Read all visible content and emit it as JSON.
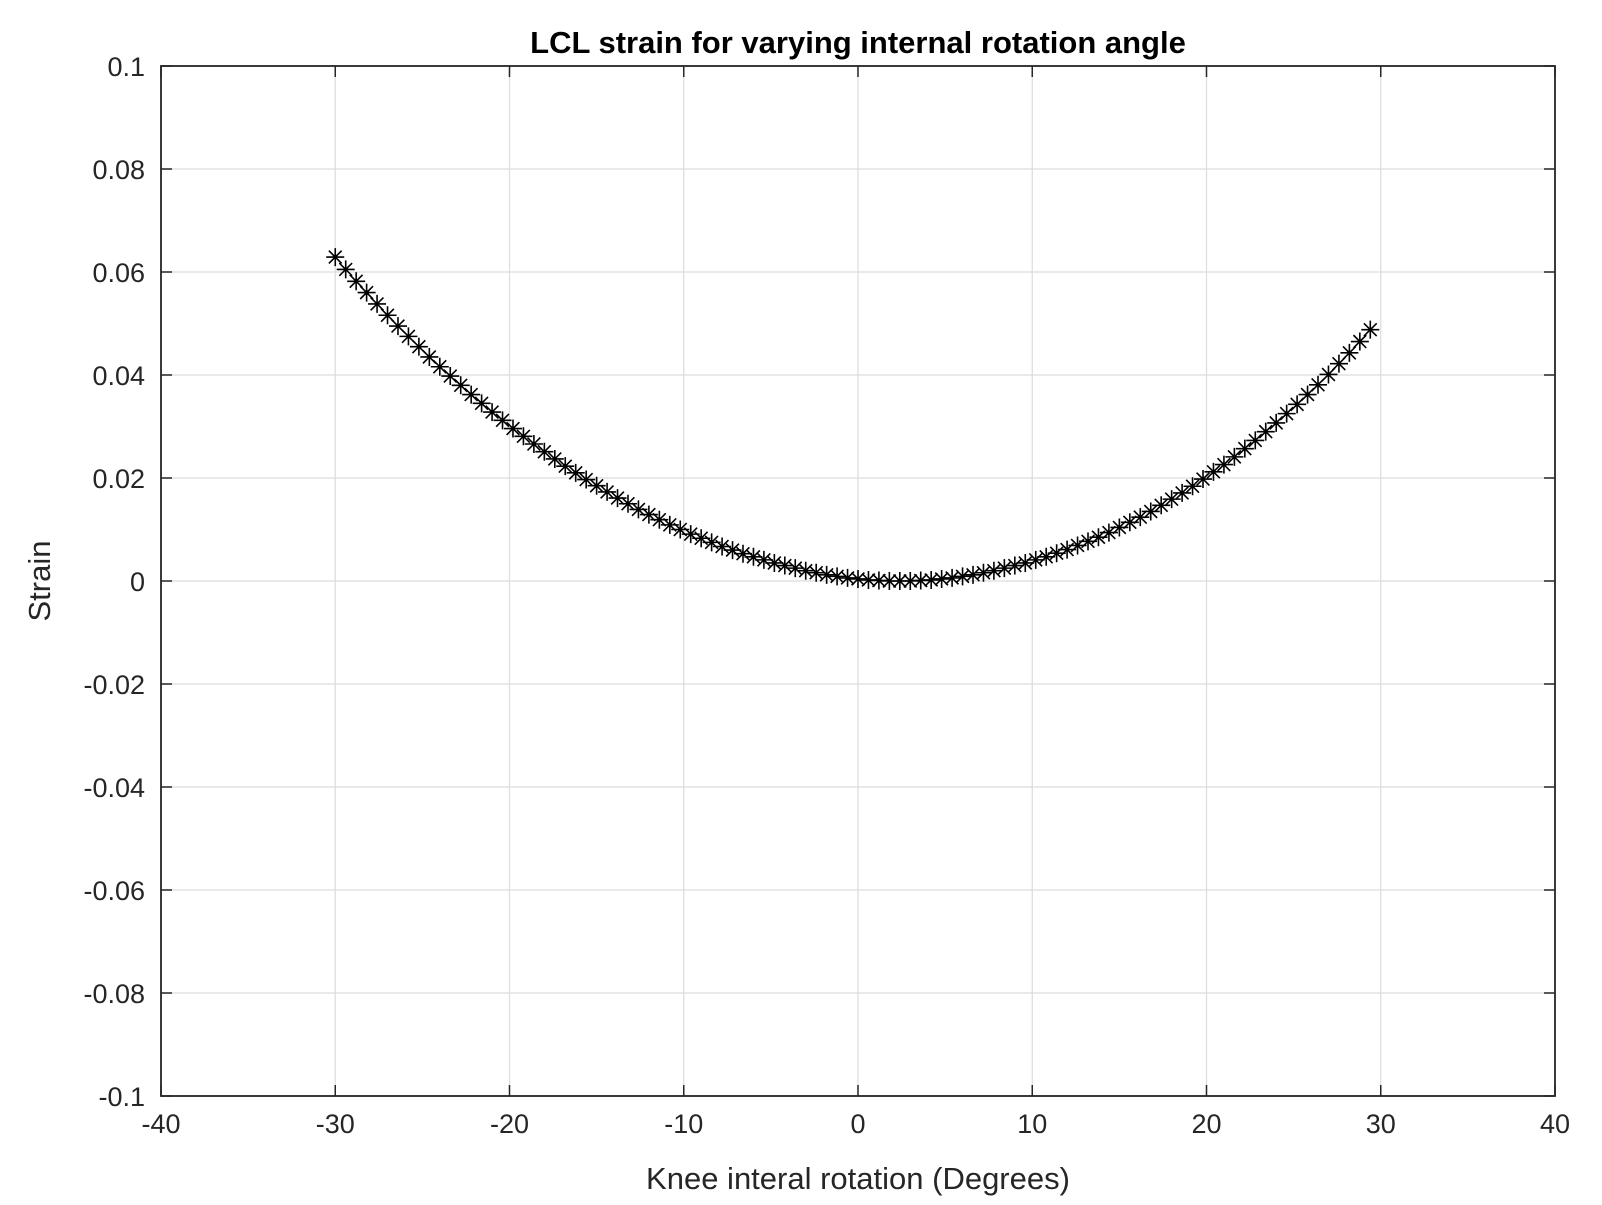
{
  "chart_data": {
    "type": "scatter",
    "title": "LCL strain for varying internal rotation angle",
    "xlabel": "Knee interal rotation (Degrees)",
    "ylabel": "Strain",
    "xlim": [
      -40,
      40
    ],
    "ylim": [
      -0.1,
      0.1
    ],
    "xticks": [
      -40,
      -30,
      -20,
      -10,
      0,
      10,
      20,
      30,
      40
    ],
    "xtick_labels": [
      "-40",
      "-30",
      "-20",
      "-10",
      "0",
      "10",
      "20",
      "30",
      "40"
    ],
    "yticks": [
      -0.1,
      -0.08,
      -0.06,
      -0.04,
      -0.02,
      0,
      0.02,
      0.04,
      0.06,
      0.08,
      0.1
    ],
    "ytick_labels": [
      "-0.1",
      "-0.08",
      "-0.06",
      "-0.04",
      "-0.02",
      "0",
      "0.02",
      "0.04",
      "0.06",
      "0.08",
      "0.1"
    ],
    "grid": true,
    "marker": "asterisk",
    "marker_color": "#000000",
    "x": [
      -30,
      -29.4,
      -28.8,
      -28.2,
      -27.6,
      -27,
      -26.4,
      -25.8,
      -25.2,
      -24.6,
      -24,
      -23.4,
      -22.8,
      -22.2,
      -21.6,
      -21,
      -20.4,
      -19.8,
      -19.2,
      -18.6,
      -18,
      -17.4,
      -16.8,
      -16.2,
      -15.6,
      -15,
      -14.4,
      -13.8,
      -13.2,
      -12.6,
      -12,
      -11.4,
      -10.8,
      -10.2,
      -9.6,
      -9,
      -8.4,
      -7.8,
      -7.2,
      -6.6,
      -6,
      -5.4,
      -4.8,
      -4.2,
      -3.6,
      -3,
      -2.4,
      -1.8,
      -1.2,
      -0.6,
      0,
      0.6,
      1.2,
      1.8,
      2.4,
      3,
      3.6,
      4.2,
      4.8,
      5.4,
      6,
      6.6,
      7.2,
      7.8,
      8.4,
      9,
      9.6,
      10.2,
      10.8,
      11.4,
      12,
      12.6,
      13.2,
      13.8,
      14.4,
      15,
      15.6,
      16.2,
      16.8,
      17.4,
      18,
      18.6,
      19.2,
      19.8,
      20.4,
      21,
      21.6,
      22.2,
      22.8,
      23.4,
      24,
      24.6,
      25.2,
      25.8,
      26.4,
      27,
      27.6,
      28.2,
      28.8,
      29.4
    ],
    "y": [
      0.0629,
      0.0605,
      0.0582,
      0.056,
      0.0538,
      0.0516,
      0.0495,
      0.0475,
      0.0455,
      0.0435,
      0.0416,
      0.0398,
      0.038,
      0.0362,
      0.0345,
      0.0328,
      0.0312,
      0.0296,
      0.0281,
      0.0266,
      0.0251,
      0.0237,
      0.0223,
      0.021,
      0.0197,
      0.0185,
      0.0173,
      0.0161,
      0.015,
      0.0139,
      0.0129,
      0.0119,
      0.0109,
      0.01,
      0.0091,
      0.0083,
      0.0075,
      0.0067,
      0.006,
      0.0053,
      0.0047,
      0.0041,
      0.0035,
      0.003,
      0.0025,
      0.002,
      0.0016,
      0.0012,
      0.0009,
      0.0006,
      0.0004,
      0.0002,
      0.0001,
      0.0,
      0.0,
      0.0,
      0.0001,
      0.0002,
      0.0004,
      0.0006,
      0.0009,
      0.0012,
      0.0016,
      0.002,
      0.0025,
      0.003,
      0.0035,
      0.0041,
      0.0047,
      0.0054,
      0.0061,
      0.0069,
      0.0077,
      0.0085,
      0.0094,
      0.0104,
      0.0114,
      0.0124,
      0.0135,
      0.0147,
      0.0159,
      0.0171,
      0.0184,
      0.0198,
      0.0212,
      0.0226,
      0.0241,
      0.0257,
      0.0273,
      0.029,
      0.0307,
      0.0325,
      0.0343,
      0.0362,
      0.0381,
      0.0401,
      0.0422,
      0.0443,
      0.0465,
      0.0488
    ]
  }
}
